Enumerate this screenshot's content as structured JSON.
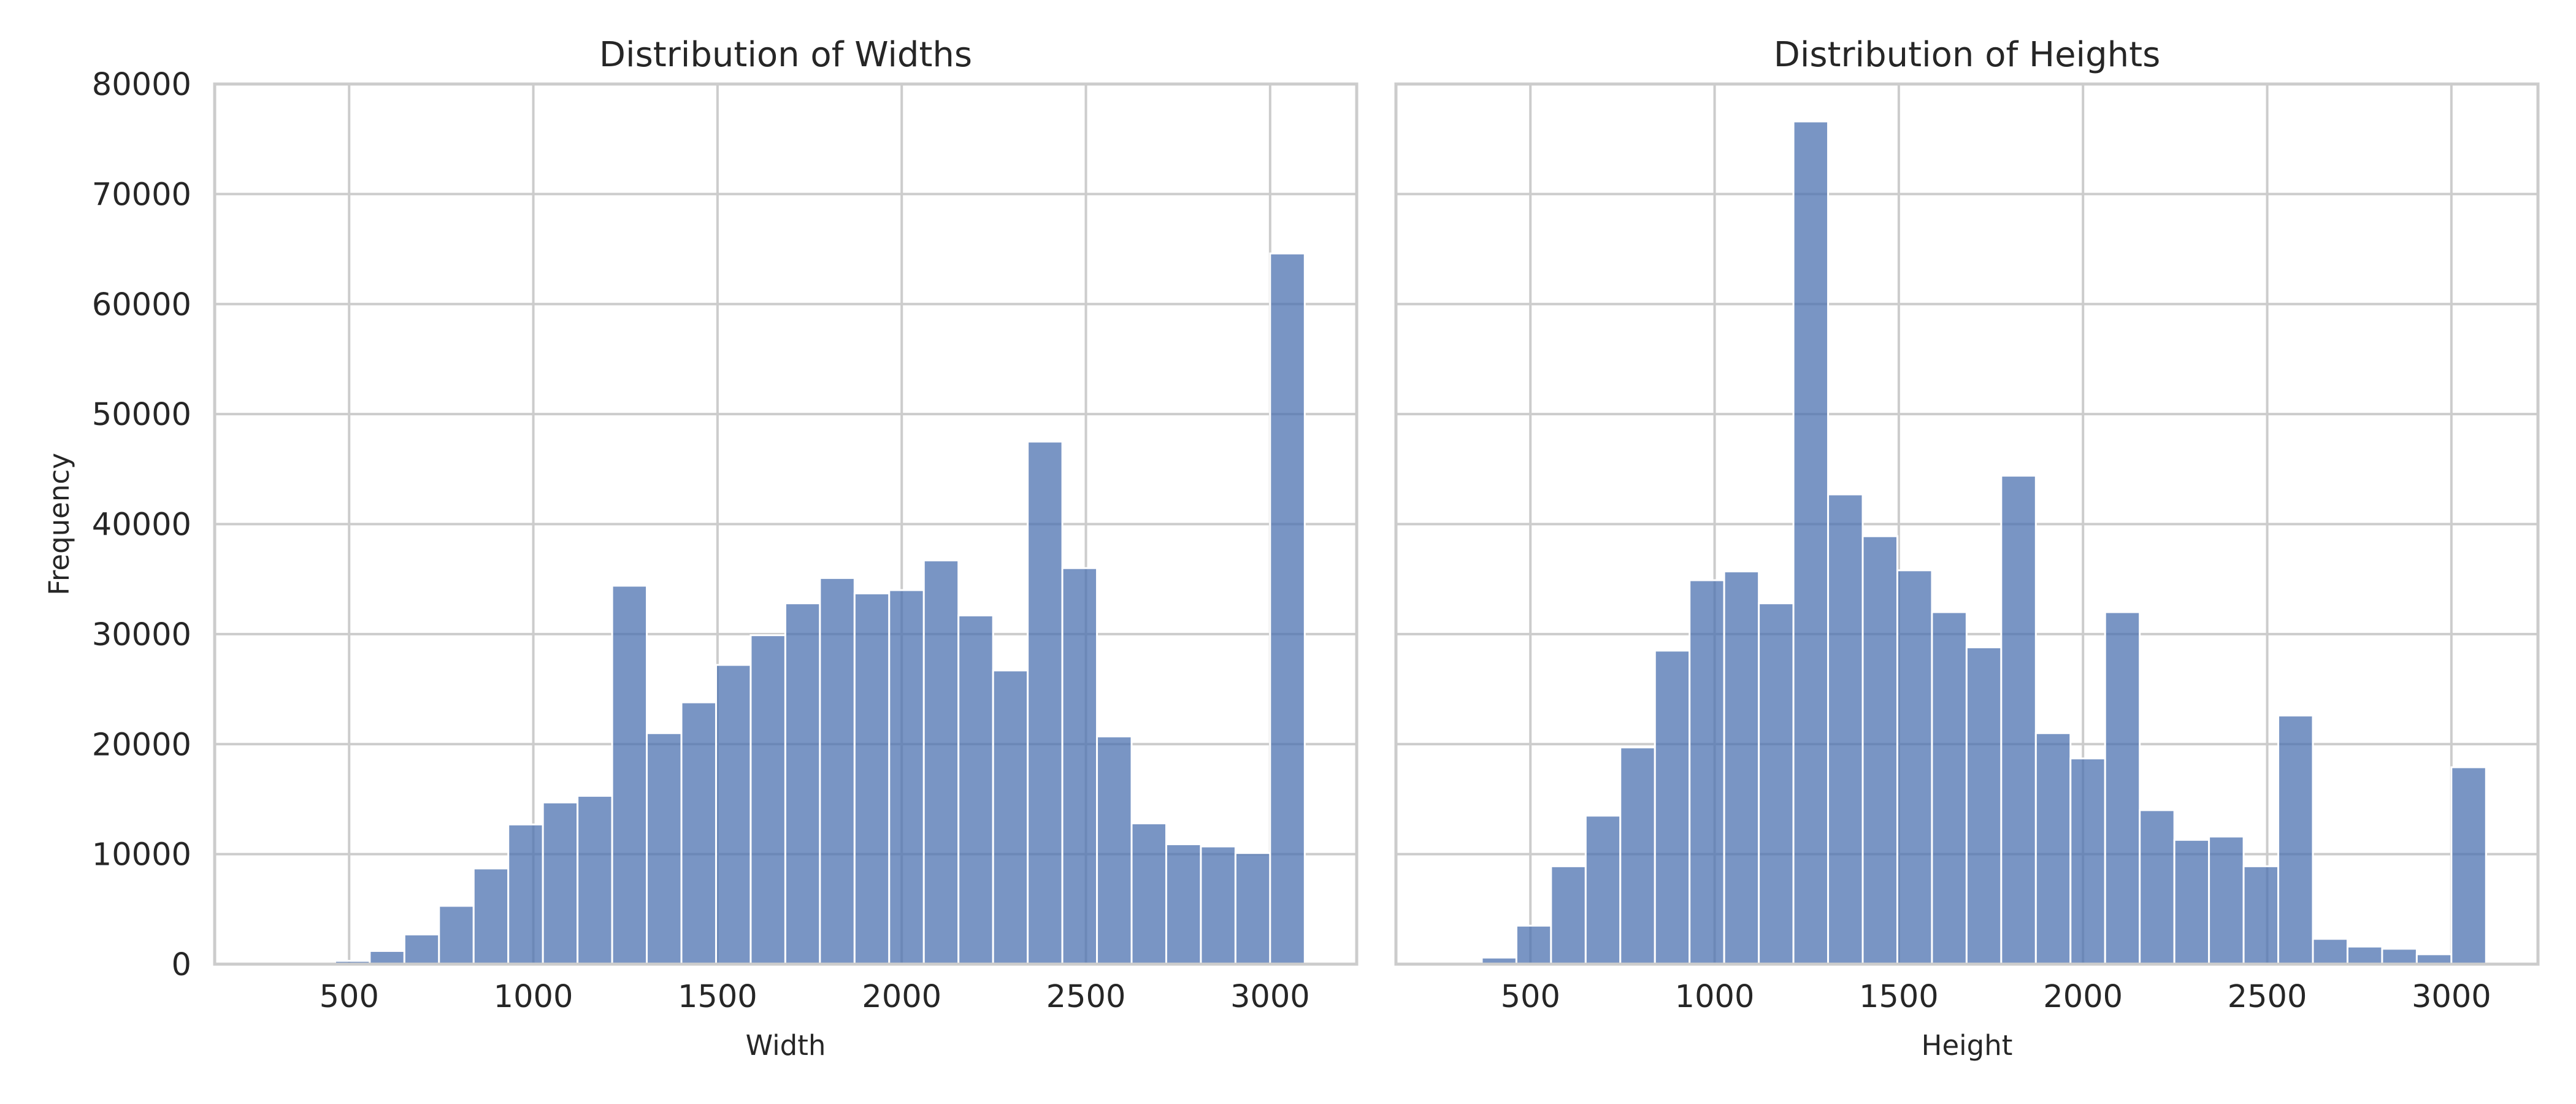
{
  "chart_data": [
    {
      "type": "bar",
      "title": "Distribution of Widths",
      "xlabel": "Width",
      "ylabel": "Frequency",
      "xlim": [
        135,
        3235
      ],
      "ylim": [
        0,
        80000
      ],
      "xticks": [
        500,
        1000,
        1500,
        2000,
        2500,
        3000
      ],
      "yticks": [
        0,
        10000,
        20000,
        30000,
        40000,
        50000,
        60000,
        70000,
        80000
      ],
      "grid": true,
      "bin_width": 94,
      "bin_edges": [
        274,
        368,
        462,
        556,
        650,
        744,
        838,
        932,
        1026,
        1120,
        1214,
        1308,
        1402,
        1496,
        1590,
        1684,
        1778,
        1872,
        1966,
        2060,
        2154,
        2248,
        2342,
        2436,
        2530,
        2624,
        2718,
        2812,
        2906,
        3000,
        3094
      ],
      "values": [
        0,
        0,
        300,
        1200,
        2700,
        5300,
        8700,
        12700,
        14700,
        15300,
        34400,
        21000,
        23800,
        27200,
        29900,
        32800,
        35100,
        33700,
        34000,
        36700,
        31700,
        26700,
        47500,
        36000,
        20700,
        12800,
        10900,
        10700,
        10100,
        64600
      ]
    },
    {
      "type": "bar",
      "title": "Distribution of Heights",
      "xlabel": "Height",
      "ylabel": "",
      "xlim": [
        135,
        3235
      ],
      "ylim": [
        0,
        80000
      ],
      "xticks": [
        500,
        1000,
        1500,
        2000,
        2500,
        3000
      ],
      "yticks": [
        0,
        10000,
        20000,
        30000,
        40000,
        50000,
        60000,
        70000,
        80000
      ],
      "grid": true,
      "bin_width": 94,
      "bin_edges": [
        274,
        368,
        462,
        556,
        650,
        744,
        838,
        932,
        1026,
        1120,
        1214,
        1308,
        1402,
        1496,
        1590,
        1684,
        1778,
        1872,
        1966,
        2060,
        2154,
        2248,
        2342,
        2436,
        2530,
        2624,
        2718,
        2812,
        2906,
        3000,
        3094
      ],
      "values": [
        0,
        600,
        3500,
        8900,
        13500,
        19700,
        28500,
        34900,
        35700,
        32800,
        76600,
        42700,
        38900,
        35800,
        32000,
        28800,
        44400,
        21000,
        18700,
        32000,
        14000,
        11300,
        11600,
        8900,
        22600,
        2300,
        1600,
        1400,
        900,
        17900
      ]
    }
  ]
}
